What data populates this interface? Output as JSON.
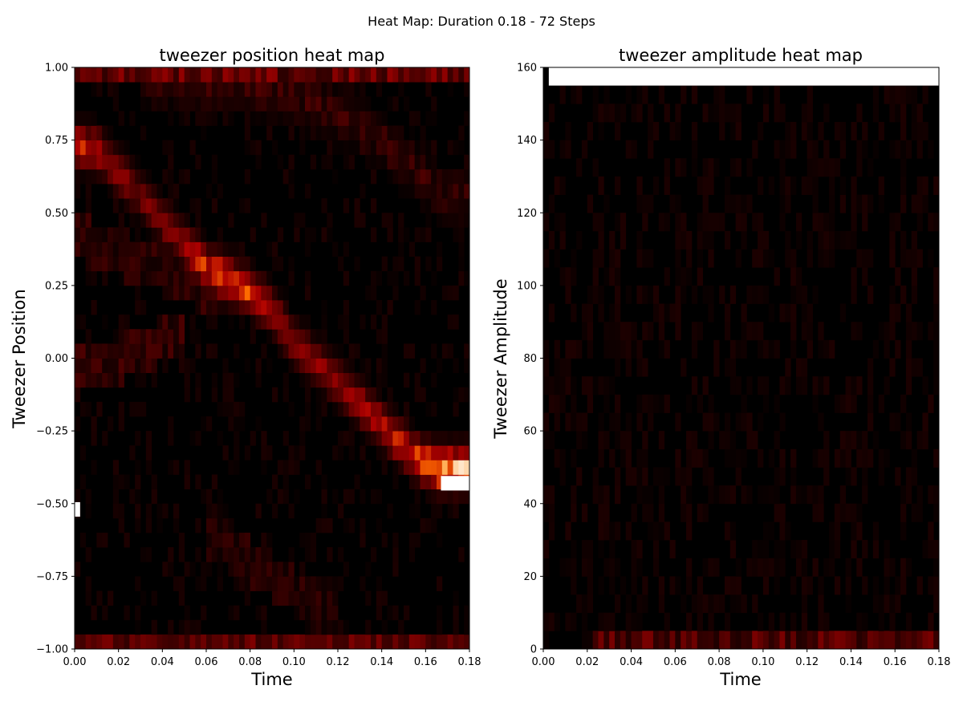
{
  "figure": {
    "suptitle": "Heat Map: Duration 0.18 - 72 Steps"
  },
  "chart_data": [
    {
      "type": "heatmap",
      "title": "tweezer position heat map",
      "xlabel": "Time",
      "ylabel": "Tweezer Position",
      "xlim": [
        0.0,
        0.18
      ],
      "ylim": [
        -1.0,
        1.0
      ],
      "colormap": "gist_heat",
      "x_ticks": [
        "0.00",
        "0.02",
        "0.04",
        "0.06",
        "0.08",
        "0.10",
        "0.12",
        "0.14",
        "0.16",
        "0.18"
      ],
      "y_ticks": [
        "−1.00",
        "−0.75",
        "−0.50",
        "−0.25",
        "0.00",
        "0.25",
        "0.50",
        "0.75",
        "1.00"
      ],
      "x_tick_values": [
        0.0,
        0.02,
        0.04,
        0.06,
        0.08,
        0.1,
        0.12,
        0.14,
        0.16,
        0.18
      ],
      "y_tick_values": [
        -1.0,
        -0.75,
        -0.5,
        -0.25,
        0.0,
        0.25,
        0.5,
        0.75,
        1.0
      ],
      "n_time_steps": 72,
      "n_bins": 40,
      "features": {
        "main_track": [
          [
            0.0,
            0.73
          ],
          [
            0.01,
            0.72
          ],
          [
            0.03,
            0.56
          ],
          [
            0.05,
            0.39
          ],
          [
            0.06,
            0.31
          ],
          [
            0.07,
            0.27
          ],
          [
            0.08,
            0.23
          ],
          [
            0.09,
            0.17
          ],
          [
            0.1,
            0.05
          ],
          [
            0.12,
            -0.08
          ],
          [
            0.14,
            -0.23
          ],
          [
            0.155,
            -0.34
          ],
          [
            0.165,
            -0.38
          ]
        ],
        "main_track_intensity": [
          0.55,
          0.45,
          0.3,
          0.45,
          0.6,
          0.7,
          0.62,
          0.45,
          0.38,
          0.4,
          0.5,
          0.6,
          0.85
        ],
        "secondary_track": [
          [
            0.03,
            0.97
          ],
          [
            0.08,
            0.93
          ],
          [
            0.11,
            0.88
          ],
          [
            0.14,
            0.75
          ],
          [
            0.17,
            0.55
          ]
        ],
        "secondary_track_intensity": 0.14,
        "faint_track_upper": [
          [
            0.0,
            0.42
          ],
          [
            0.03,
            0.33
          ],
          [
            0.07,
            0.22
          ]
        ],
        "faint_track_lower": [
          [
            0.0,
            -0.05
          ],
          [
            0.03,
            0.02
          ],
          [
            0.05,
            0.1
          ]
        ],
        "lower_diagonal": [
          [
            0.06,
            -0.6
          ],
          [
            0.09,
            -0.75
          ],
          [
            0.12,
            -0.9
          ]
        ],
        "top_row_value": 0.32,
        "bottom_row_value": 0.3,
        "saturated_cells": [
          {
            "t": [
              0.167,
              0.18
            ],
            "y": -0.43
          },
          {
            "t": [
              0.0,
              0.0025
            ],
            "y": -0.52
          }
        ]
      }
    },
    {
      "type": "heatmap",
      "title": "tweezer amplitude heat map",
      "xlabel": "Time",
      "ylabel": "Tweezer Amplitude",
      "xlim": [
        0.0,
        0.18
      ],
      "ylim": [
        0,
        160
      ],
      "colormap": "gist_heat",
      "x_ticks": [
        "0.00",
        "0.02",
        "0.04",
        "0.06",
        "0.08",
        "0.10",
        "0.12",
        "0.14",
        "0.16",
        "0.18"
      ],
      "y_ticks": [
        "0",
        "20",
        "40",
        "60",
        "80",
        "100",
        "120",
        "140",
        "160"
      ],
      "x_tick_values": [
        0.0,
        0.02,
        0.04,
        0.06,
        0.08,
        0.1,
        0.12,
        0.14,
        0.16,
        0.18
      ],
      "y_tick_values": [
        0,
        20,
        40,
        60,
        80,
        100,
        120,
        140,
        160
      ],
      "n_time_steps": 72,
      "n_bins": 32,
      "features": {
        "background_level": 0.05,
        "bottom_bin_range": [
          0,
          5
        ],
        "bottom_bin_value": 0.28,
        "saturated_cells": [
          {
            "t": [
              0.0025,
              0.18
            ],
            "amplitude": [
              155,
              160
            ]
          }
        ]
      }
    }
  ]
}
